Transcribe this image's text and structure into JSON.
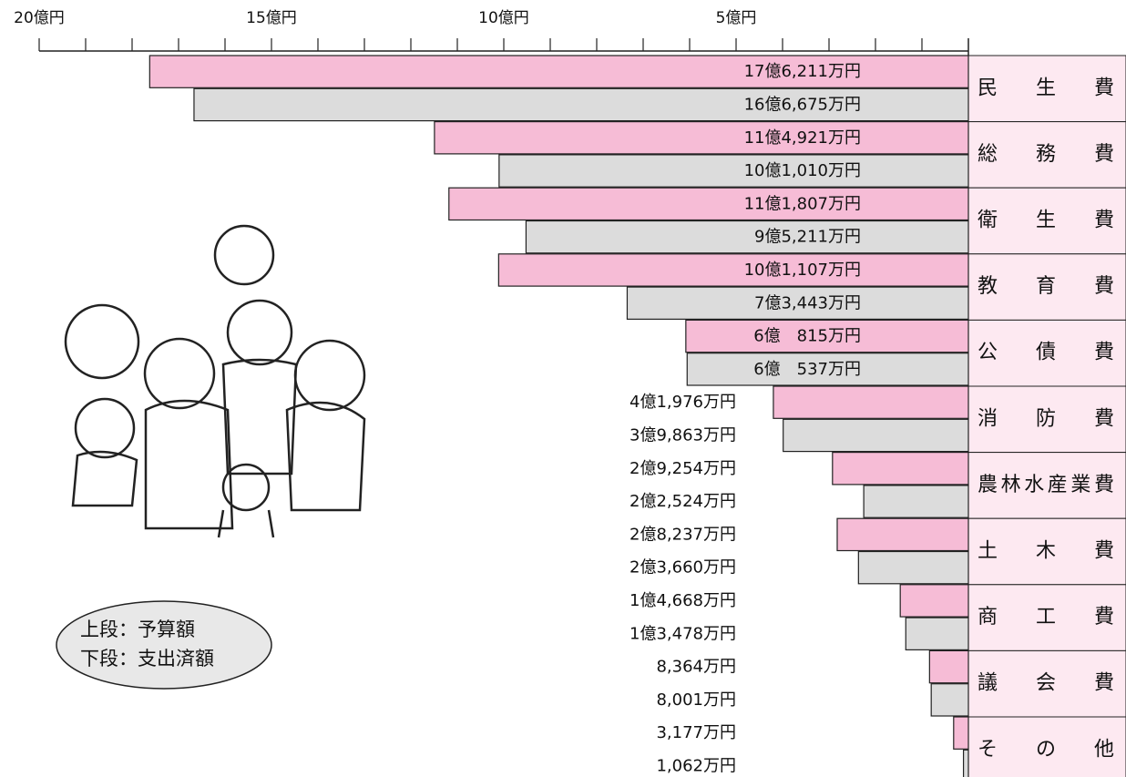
{
  "chart_data": {
    "type": "bar",
    "orientation": "horizontal-leftward",
    "categories": [
      "民生費",
      "総務費",
      "衛生費",
      "教育費",
      "公債費",
      "消防費",
      "農林水産業費",
      "土木費",
      "商工費",
      "議会費",
      "その他"
    ],
    "series": [
      {
        "name": "上段：予算額",
        "color": "#f6bcd6",
        "values": [
          17.6211,
          11.4921,
          11.1807,
          10.1107,
          6.0815,
          4.1976,
          2.9254,
          2.8237,
          1.4668,
          0.8364,
          0.3177
        ],
        "value_labels": [
          "17億6,211万円",
          "11億4,921万円",
          "11億1,807万円",
          "10億1,107万円",
          "6億　815万円",
          "4億1,976万円",
          "2億9,254万円",
          "2億8,237万円",
          "1億4,668万円",
          "8,364万円",
          "3,177万円"
        ]
      },
      {
        "name": "下段：支出済額",
        "color": "#dcdcdc",
        "values": [
          16.6675,
          10.101,
          9.5211,
          7.3443,
          6.0537,
          3.9863,
          2.2524,
          2.366,
          1.3478,
          0.8001,
          0.1062
        ],
        "value_labels": [
          "16億6,675万円",
          "10億1,010万円",
          "9億5,211万円",
          "7億3,443万円",
          "6億　537万円",
          "3億9,863万円",
          "2億2,524万円",
          "2億3,660万円",
          "1億3,478万円",
          "8,001万円",
          "1,062万円"
        ]
      }
    ],
    "xlim": [
      0,
      20
    ],
    "xticks": [
      {
        "value": 20,
        "label": "20億円"
      },
      {
        "value": 15,
        "label": "15億円"
      },
      {
        "value": 10,
        "label": "10億円"
      },
      {
        "value": 5,
        "label": "5億円"
      }
    ],
    "xminorticks": [
      1,
      2,
      3,
      4,
      5,
      6,
      7,
      8,
      9,
      10,
      11,
      12,
      13,
      14,
      15,
      16,
      17,
      18,
      19,
      20
    ],
    "category_color": "#fde9f1"
  }
}
